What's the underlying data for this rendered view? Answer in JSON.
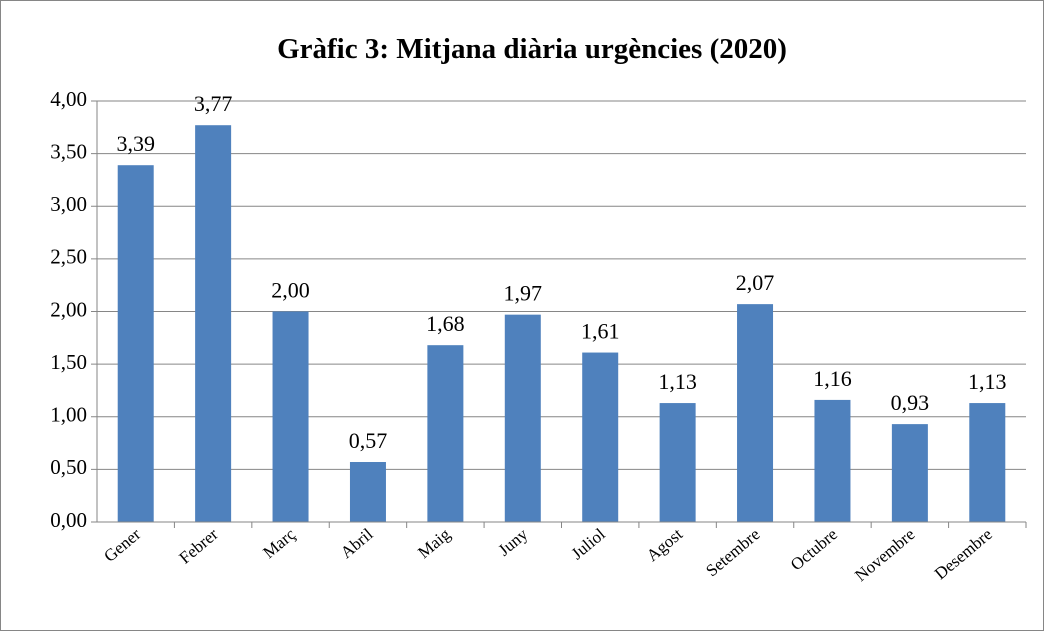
{
  "chart_data": {
    "type": "bar",
    "title": "Gràfic 3: Mitjana diària urgències (2020)",
    "categories": [
      "Gener",
      "Febrer",
      "Març",
      "Abril",
      "Maig",
      "Juny",
      "Juliol",
      "Agost",
      "Setembre",
      "Octubre",
      "Novembre",
      "Desembre"
    ],
    "values": [
      3.39,
      3.77,
      2.0,
      0.57,
      1.68,
      1.97,
      1.61,
      1.13,
      2.07,
      1.16,
      0.93,
      1.13
    ],
    "value_labels": [
      "3,39",
      "3,77",
      "2,00",
      "0,57",
      "1,68",
      "1,97",
      "1,61",
      "1,13",
      "2,07",
      "1,16",
      "0,93",
      "1,13"
    ],
    "color": "#4f81bd",
    "ylim": [
      0,
      4
    ],
    "yticks": [
      {
        "value": 0,
        "label": "0,00"
      },
      {
        "value": 0.5,
        "label": "0,50"
      },
      {
        "value": 1,
        "label": "1,00"
      },
      {
        "value": 1.5,
        "label": "1,50"
      },
      {
        "value": 2,
        "label": "2,00"
      },
      {
        "value": 2.5,
        "label": "2,50"
      },
      {
        "value": 3,
        "label": "3,00"
      },
      {
        "value": 3.5,
        "label": "3,50"
      },
      {
        "value": 4,
        "label": "4,00"
      }
    ],
    "grid": true
  }
}
